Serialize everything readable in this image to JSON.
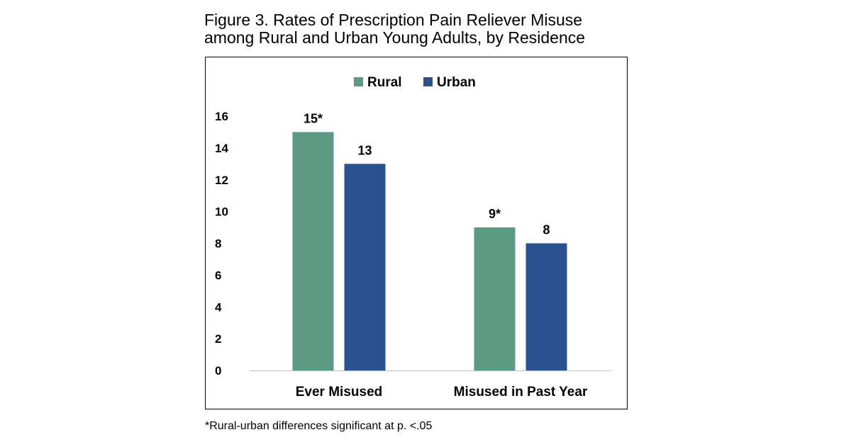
{
  "figure": {
    "title_line1": "Figure 3. Rates of Prescription Pain Reliever Misuse",
    "title_line2": "among Rural and Urban Young Adults, by Residence",
    "footnote": "*Rural-urban differences significant at p. <.05"
  },
  "chart_data": {
    "type": "bar",
    "categories": [
      "Ever Misused",
      "Misused in Past Year"
    ],
    "series": [
      {
        "name": "Rural",
        "color": "#5c9a82",
        "values": [
          15,
          9
        ],
        "labels": [
          "15*",
          "9*"
        ]
      },
      {
        "name": "Urban",
        "color": "#2c5191",
        "values": [
          13,
          8
        ],
        "labels": [
          "13",
          "8"
        ]
      }
    ],
    "yticks": [
      0,
      2,
      4,
      6,
      8,
      10,
      12,
      14,
      16
    ],
    "ylim": [
      0,
      16
    ],
    "grid": false,
    "legend": "top-center"
  }
}
